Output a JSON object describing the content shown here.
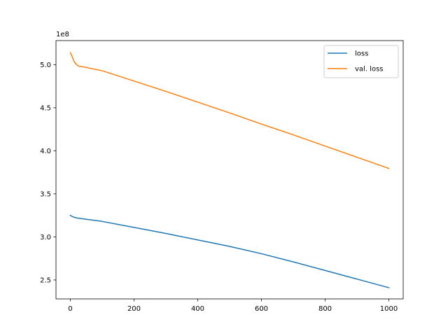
{
  "chart_data": {
    "type": "line",
    "title": "",
    "xlabel": "",
    "ylabel": "",
    "y_offset_label": "1e8",
    "xlim": [
      -45,
      1045
    ],
    "ylim": [
      228000000.0,
      528000000.0
    ],
    "x_ticks": [
      0,
      200,
      400,
      600,
      800,
      1000
    ],
    "x_tick_labels": [
      "0",
      "200",
      "400",
      "600",
      "800",
      "1000"
    ],
    "y_ticks": [
      250000000.0,
      300000000.0,
      350000000.0,
      400000000.0,
      450000000.0,
      500000000.0
    ],
    "y_tick_labels": [
      "2.5",
      "3.0",
      "3.5",
      "4.0",
      "4.5",
      "5.0"
    ],
    "grid": false,
    "legend_position": "top-right",
    "series": [
      {
        "name": "loss",
        "color": "#1f77b4",
        "x": [
          0,
          5,
          10,
          15,
          20,
          30,
          50,
          100,
          150,
          200,
          300,
          400,
          500,
          600,
          700,
          800,
          900,
          1000
        ],
        "y": [
          325000000.0,
          324000000.0,
          323000000.0,
          322500000.0,
          322000000.0,
          321500000.0,
          320500000.0,
          318000000.0,
          314500000.0,
          311000000.0,
          304000000.0,
          296500000.0,
          289000000.0,
          280500000.0,
          271000000.0,
          261000000.0,
          251000000.0,
          241000000.0
        ]
      },
      {
        "name": "val. loss",
        "color": "#ff7f0e",
        "x": [
          0,
          5,
          10,
          15,
          20,
          25,
          30,
          40,
          50,
          60,
          100,
          200,
          300,
          400,
          500,
          600,
          700,
          800,
          900,
          1000
        ],
        "y": [
          514000000.0,
          510000000.0,
          505000000.0,
          502000000.0,
          500000000.0,
          498500000.0,
          498000000.0,
          497500000.0,
          497000000.0,
          496000000.0,
          493000000.0,
          481000000.0,
          469000000.0,
          456500000.0,
          444000000.0,
          431000000.0,
          418500000.0,
          405500000.0,
          392500000.0,
          379500000.0
        ]
      }
    ]
  }
}
